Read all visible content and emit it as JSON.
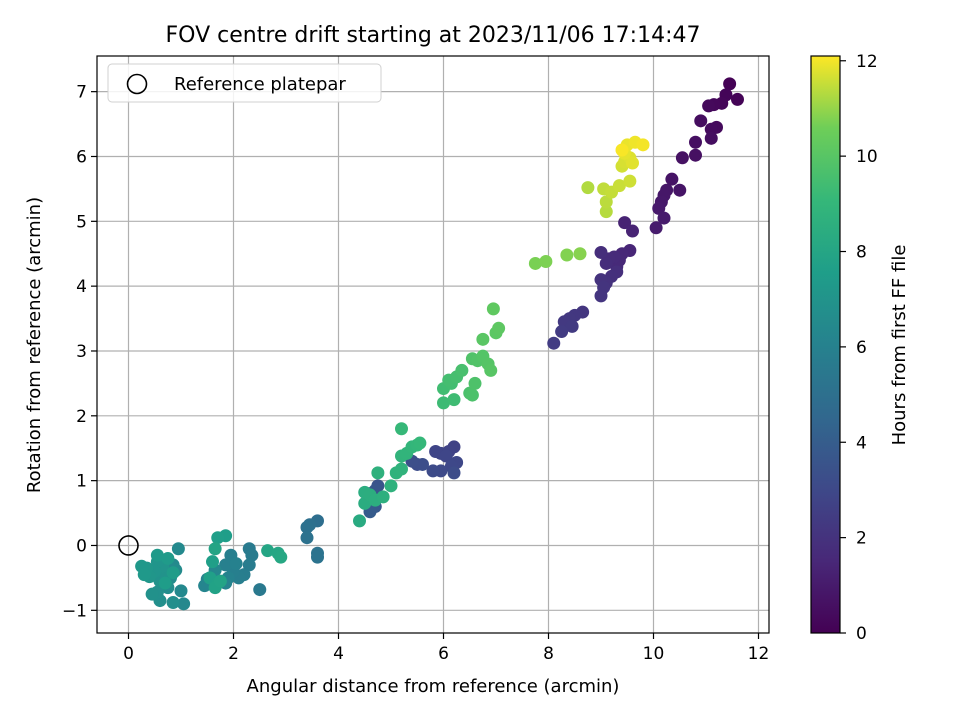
{
  "chart_data": {
    "type": "scatter",
    "title": "FOV centre drift starting at 2023/11/06 17:14:47",
    "xlabel": "Angular distance from reference (arcmin)",
    "ylabel": "Rotation from reference (arcmin)",
    "xlim": [
      -0.6,
      12.2
    ],
    "ylim": [
      -1.35,
      7.55
    ],
    "xticks": [
      0,
      2,
      4,
      6,
      8,
      10,
      12
    ],
    "yticks": [
      -1,
      0,
      1,
      2,
      3,
      4,
      5,
      6,
      7
    ],
    "grid": true,
    "legend": {
      "placement": "top-left",
      "entries": [
        "Reference platepar"
      ]
    },
    "reference_point": {
      "x": 0,
      "y": 0,
      "label": "Reference platepar"
    },
    "colorbar": {
      "label": "Hours from first FF file",
      "colormap": "viridis",
      "range": [
        0,
        12.1
      ],
      "ticks": [
        0,
        2,
        4,
        6,
        8,
        10,
        12
      ]
    },
    "points": [
      {
        "x": 11.45,
        "y": 7.12,
        "h": 0.05
      },
      {
        "x": 11.6,
        "y": 6.88,
        "h": 0.1
      },
      {
        "x": 11.38,
        "y": 6.95,
        "h": 0.15
      },
      {
        "x": 11.3,
        "y": 6.82,
        "h": 0.2
      },
      {
        "x": 11.15,
        "y": 6.8,
        "h": 0.25
      },
      {
        "x": 11.05,
        "y": 6.78,
        "h": 0.3
      },
      {
        "x": 11.2,
        "y": 6.45,
        "h": 0.35
      },
      {
        "x": 11.1,
        "y": 6.42,
        "h": 0.4
      },
      {
        "x": 10.9,
        "y": 6.55,
        "h": 0.45
      },
      {
        "x": 11.1,
        "y": 6.28,
        "h": 0.5
      },
      {
        "x": 10.8,
        "y": 6.22,
        "h": 0.55
      },
      {
        "x": 10.8,
        "y": 6.02,
        "h": 0.6
      },
      {
        "x": 10.55,
        "y": 5.98,
        "h": 0.65
      },
      {
        "x": 10.35,
        "y": 5.65,
        "h": 0.7
      },
      {
        "x": 10.5,
        "y": 5.48,
        "h": 0.75
      },
      {
        "x": 10.25,
        "y": 5.48,
        "h": 0.8
      },
      {
        "x": 10.2,
        "y": 5.4,
        "h": 0.85
      },
      {
        "x": 10.15,
        "y": 5.3,
        "h": 0.9
      },
      {
        "x": 10.1,
        "y": 5.2,
        "h": 0.95
      },
      {
        "x": 10.2,
        "y": 5.05,
        "h": 1.0
      },
      {
        "x": 10.05,
        "y": 4.9,
        "h": 1.05
      },
      {
        "x": 9.45,
        "y": 4.98,
        "h": 1.3
      },
      {
        "x": 9.6,
        "y": 4.85,
        "h": 1.35
      },
      {
        "x": 9.55,
        "y": 4.55,
        "h": 1.45
      },
      {
        "x": 9.4,
        "y": 4.5,
        "h": 1.5
      },
      {
        "x": 9.35,
        "y": 4.4,
        "h": 1.55
      },
      {
        "x": 9.3,
        "y": 4.3,
        "h": 1.6
      },
      {
        "x": 9.25,
        "y": 4.45,
        "h": 1.65
      },
      {
        "x": 9.15,
        "y": 4.42,
        "h": 1.7
      },
      {
        "x": 9.1,
        "y": 4.35,
        "h": 1.75
      },
      {
        "x": 9.0,
        "y": 4.52,
        "h": 1.8
      },
      {
        "x": 9.3,
        "y": 4.22,
        "h": 1.85
      },
      {
        "x": 9.2,
        "y": 4.15,
        "h": 1.9
      },
      {
        "x": 9.1,
        "y": 4.05,
        "h": 1.95
      },
      {
        "x": 9.0,
        "y": 4.1,
        "h": 2.0
      },
      {
        "x": 9.05,
        "y": 3.98,
        "h": 2.05
      },
      {
        "x": 9.0,
        "y": 3.85,
        "h": 2.1
      },
      {
        "x": 8.65,
        "y": 3.6,
        "h": 2.15
      },
      {
        "x": 8.5,
        "y": 3.55,
        "h": 2.2
      },
      {
        "x": 8.4,
        "y": 3.5,
        "h": 2.25
      },
      {
        "x": 8.3,
        "y": 3.45,
        "h": 2.3
      },
      {
        "x": 8.45,
        "y": 3.38,
        "h": 2.35
      },
      {
        "x": 8.25,
        "y": 3.3,
        "h": 2.4
      },
      {
        "x": 8.1,
        "y": 3.12,
        "h": 2.45
      },
      {
        "x": 6.2,
        "y": 1.52,
        "h": 2.7
      },
      {
        "x": 6.1,
        "y": 1.45,
        "h": 2.75
      },
      {
        "x": 5.95,
        "y": 1.42,
        "h": 2.8
      },
      {
        "x": 5.85,
        "y": 1.45,
        "h": 2.85
      },
      {
        "x": 6.05,
        "y": 1.38,
        "h": 2.9
      },
      {
        "x": 6.25,
        "y": 1.28,
        "h": 2.95
      },
      {
        "x": 6.15,
        "y": 1.22,
        "h": 3.0
      },
      {
        "x": 5.95,
        "y": 1.15,
        "h": 3.05
      },
      {
        "x": 5.8,
        "y": 1.15,
        "h": 3.1
      },
      {
        "x": 6.2,
        "y": 1.12,
        "h": 3.15
      },
      {
        "x": 5.5,
        "y": 1.25,
        "h": 3.2
      },
      {
        "x": 5.6,
        "y": 1.25,
        "h": 3.25
      },
      {
        "x": 5.4,
        "y": 1.3,
        "h": 3.3
      },
      {
        "x": 4.75,
        "y": 0.92,
        "h": 3.5
      },
      {
        "x": 4.7,
        "y": 0.85,
        "h": 3.6
      },
      {
        "x": 4.6,
        "y": 0.8,
        "h": 3.7
      },
      {
        "x": 4.7,
        "y": 0.6,
        "h": 3.8
      },
      {
        "x": 4.6,
        "y": 0.52,
        "h": 3.9
      },
      {
        "x": 3.6,
        "y": 0.38,
        "h": 4.9
      },
      {
        "x": 3.45,
        "y": 0.32,
        "h": 5.0
      },
      {
        "x": 3.4,
        "y": 0.28,
        "h": 5.05
      },
      {
        "x": 3.4,
        "y": 0.12,
        "h": 5.1
      },
      {
        "x": 3.6,
        "y": -0.12,
        "h": 5.15
      },
      {
        "x": 3.6,
        "y": -0.18,
        "h": 5.2
      },
      {
        "x": 2.5,
        "y": -0.68,
        "h": 5.5
      },
      {
        "x": 2.3,
        "y": -0.05,
        "h": 5.6
      },
      {
        "x": 2.35,
        "y": -0.15,
        "h": 5.65
      },
      {
        "x": 2.3,
        "y": -0.3,
        "h": 5.7
      },
      {
        "x": 2.2,
        "y": -0.45,
        "h": 5.75
      },
      {
        "x": 2.1,
        "y": -0.5,
        "h": 5.8
      },
      {
        "x": 2.0,
        "y": -0.4,
        "h": 5.85
      },
      {
        "x": 1.95,
        "y": -0.15,
        "h": 5.9
      },
      {
        "x": 1.85,
        "y": -0.3,
        "h": 5.95
      },
      {
        "x": 2.05,
        "y": -0.28,
        "h": 6.0
      },
      {
        "x": 1.9,
        "y": -0.5,
        "h": 6.05
      },
      {
        "x": 1.85,
        "y": -0.58,
        "h": 6.1
      },
      {
        "x": 1.5,
        "y": -0.52,
        "h": 6.15
      },
      {
        "x": 1.45,
        "y": -0.62,
        "h": 6.2
      },
      {
        "x": 1.6,
        "y": -0.55,
        "h": 6.25
      },
      {
        "x": 1.65,
        "y": -0.38,
        "h": 6.3
      },
      {
        "x": 1.05,
        "y": -0.9,
        "h": 6.35
      },
      {
        "x": 1.0,
        "y": -0.7,
        "h": 6.4
      },
      {
        "x": 0.95,
        "y": -0.05,
        "h": 6.45
      },
      {
        "x": 0.85,
        "y": -0.3,
        "h": 6.5
      },
      {
        "x": 0.9,
        "y": -0.38,
        "h": 6.55
      },
      {
        "x": 0.8,
        "y": -0.5,
        "h": 6.6
      },
      {
        "x": 0.75,
        "y": -0.65,
        "h": 6.65
      },
      {
        "x": 0.85,
        "y": -0.88,
        "h": 6.7
      },
      {
        "x": 0.6,
        "y": -0.85,
        "h": 6.75
      },
      {
        "x": 0.55,
        "y": -0.72,
        "h": 6.8
      },
      {
        "x": 0.45,
        "y": -0.75,
        "h": 6.85
      },
      {
        "x": 0.6,
        "y": -0.55,
        "h": 6.9
      },
      {
        "x": 0.7,
        "y": -0.45,
        "h": 6.95
      },
      {
        "x": 0.65,
        "y": -0.32,
        "h": 7.0
      },
      {
        "x": 0.55,
        "y": -0.25,
        "h": 7.05
      },
      {
        "x": 0.5,
        "y": -0.4,
        "h": 7.1
      },
      {
        "x": 0.4,
        "y": -0.48,
        "h": 7.15
      },
      {
        "x": 0.35,
        "y": -0.35,
        "h": 7.2
      },
      {
        "x": 0.25,
        "y": -0.32,
        "h": 7.25
      },
      {
        "x": 0.3,
        "y": -0.45,
        "h": 7.3
      },
      {
        "x": 0.55,
        "y": -0.15,
        "h": 7.35
      },
      {
        "x": 0.75,
        "y": -0.2,
        "h": 7.4
      },
      {
        "x": 0.85,
        "y": -0.42,
        "h": 7.45
      },
      {
        "x": 0.7,
        "y": -0.58,
        "h": 7.5
      },
      {
        "x": 1.85,
        "y": 0.15,
        "h": 7.55
      },
      {
        "x": 1.7,
        "y": 0.12,
        "h": 7.6
      },
      {
        "x": 1.6,
        "y": -0.25,
        "h": 7.65
      },
      {
        "x": 1.55,
        "y": -0.5,
        "h": 7.7
      },
      {
        "x": 1.7,
        "y": -0.58,
        "h": 7.75
      },
      {
        "x": 1.65,
        "y": -0.65,
        "h": 7.8
      },
      {
        "x": 1.75,
        "y": -0.55,
        "h": 7.85
      },
      {
        "x": 1.65,
        "y": -0.05,
        "h": 7.9
      },
      {
        "x": 2.65,
        "y": -0.08,
        "h": 8.0
      },
      {
        "x": 2.85,
        "y": -0.12,
        "h": 8.05
      },
      {
        "x": 2.9,
        "y": -0.18,
        "h": 8.1
      },
      {
        "x": 4.4,
        "y": 0.38,
        "h": 8.3
      },
      {
        "x": 4.5,
        "y": 0.65,
        "h": 8.4
      },
      {
        "x": 4.5,
        "y": 0.82,
        "h": 8.45
      },
      {
        "x": 4.6,
        "y": 0.78,
        "h": 8.5
      },
      {
        "x": 4.7,
        "y": 0.7,
        "h": 8.55
      },
      {
        "x": 4.85,
        "y": 0.75,
        "h": 8.6
      },
      {
        "x": 4.75,
        "y": 1.12,
        "h": 8.65
      },
      {
        "x": 5.0,
        "y": 0.92,
        "h": 8.7
      },
      {
        "x": 5.1,
        "y": 1.12,
        "h": 8.75
      },
      {
        "x": 5.2,
        "y": 1.18,
        "h": 8.8
      },
      {
        "x": 5.2,
        "y": 1.38,
        "h": 8.85
      },
      {
        "x": 5.3,
        "y": 1.42,
        "h": 8.9
      },
      {
        "x": 5.4,
        "y": 1.52,
        "h": 8.95
      },
      {
        "x": 5.5,
        "y": 1.55,
        "h": 9.0
      },
      {
        "x": 5.55,
        "y": 1.58,
        "h": 9.05
      },
      {
        "x": 5.2,
        "y": 1.8,
        "h": 9.1
      },
      {
        "x": 6.0,
        "y": 2.2,
        "h": 9.3
      },
      {
        "x": 6.2,
        "y": 2.25,
        "h": 9.35
      },
      {
        "x": 6.0,
        "y": 2.42,
        "h": 9.4
      },
      {
        "x": 6.15,
        "y": 2.5,
        "h": 9.45
      },
      {
        "x": 6.1,
        "y": 2.55,
        "h": 9.5
      },
      {
        "x": 6.25,
        "y": 2.6,
        "h": 9.55
      },
      {
        "x": 6.35,
        "y": 2.7,
        "h": 9.6
      },
      {
        "x": 6.5,
        "y": 2.35,
        "h": 9.65
      },
      {
        "x": 6.55,
        "y": 2.32,
        "h": 9.7
      },
      {
        "x": 6.6,
        "y": 2.5,
        "h": 9.75
      },
      {
        "x": 6.55,
        "y": 2.88,
        "h": 9.8
      },
      {
        "x": 6.65,
        "y": 2.85,
        "h": 9.85
      },
      {
        "x": 6.75,
        "y": 2.92,
        "h": 9.9
      },
      {
        "x": 6.85,
        "y": 2.8,
        "h": 9.95
      },
      {
        "x": 6.9,
        "y": 2.7,
        "h": 10.0
      },
      {
        "x": 6.75,
        "y": 3.18,
        "h": 10.05
      },
      {
        "x": 7.0,
        "y": 3.28,
        "h": 10.1
      },
      {
        "x": 7.05,
        "y": 3.35,
        "h": 10.15
      },
      {
        "x": 6.95,
        "y": 3.65,
        "h": 10.2
      },
      {
        "x": 7.75,
        "y": 4.35,
        "h": 10.7
      },
      {
        "x": 7.95,
        "y": 4.38,
        "h": 10.75
      },
      {
        "x": 8.35,
        "y": 4.48,
        "h": 10.8
      },
      {
        "x": 8.6,
        "y": 4.5,
        "h": 10.85
      },
      {
        "x": 8.75,
        "y": 5.52,
        "h": 11.3
      },
      {
        "x": 9.1,
        "y": 5.15,
        "h": 11.35
      },
      {
        "x": 9.1,
        "y": 5.3,
        "h": 11.4
      },
      {
        "x": 9.05,
        "y": 5.5,
        "h": 11.45
      },
      {
        "x": 9.2,
        "y": 5.45,
        "h": 11.5
      },
      {
        "x": 9.35,
        "y": 5.55,
        "h": 11.55
      },
      {
        "x": 9.55,
        "y": 5.62,
        "h": 11.6
      },
      {
        "x": 9.4,
        "y": 5.85,
        "h": 11.65
      },
      {
        "x": 9.45,
        "y": 5.92,
        "h": 11.7
      },
      {
        "x": 9.55,
        "y": 5.98,
        "h": 11.75
      },
      {
        "x": 9.6,
        "y": 5.9,
        "h": 11.8
      },
      {
        "x": 9.45,
        "y": 6.05,
        "h": 11.85
      },
      {
        "x": 9.5,
        "y": 6.18,
        "h": 11.9
      },
      {
        "x": 9.65,
        "y": 6.22,
        "h": 11.95
      },
      {
        "x": 9.8,
        "y": 6.18,
        "h": 12.0
      },
      {
        "x": 9.4,
        "y": 6.1,
        "h": 12.05
      }
    ]
  }
}
